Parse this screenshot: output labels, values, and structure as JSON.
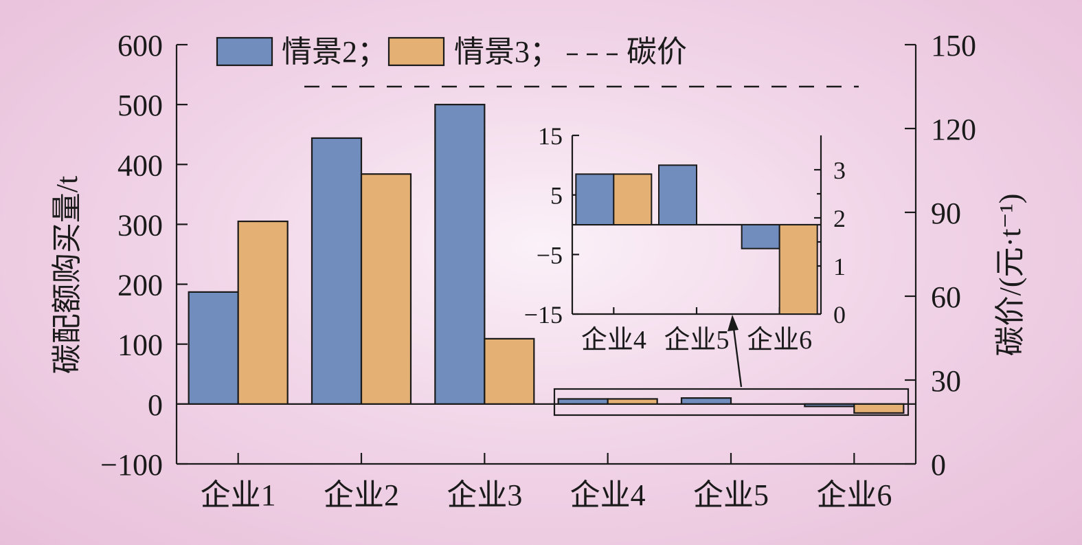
{
  "chart_data": {
    "type": "bar",
    "categories": [
      "企业1",
      "企业2",
      "企业3",
      "企业4",
      "企业5",
      "企业6"
    ],
    "series": [
      {
        "name": "情景2",
        "color": "#718dbd",
        "values": [
          187,
          444,
          500,
          8.5,
          10,
          -4
        ]
      },
      {
        "name": "情景3",
        "color": "#e5b073",
        "values": [
          305,
          384,
          109,
          8.5,
          0,
          -15
        ]
      }
    ],
    "carbon_price": {
      "label": "碳价",
      "value": 135,
      "style": "dashed"
    },
    "ylabel": "碳配额购买量/t",
    "y2label": "碳价/(元·t⁻¹)",
    "ylim": [
      -100,
      600
    ],
    "yticks": [
      "600",
      "500",
      "400",
      "300",
      "200",
      "100",
      "0",
      "−100"
    ],
    "y2lim": [
      0,
      150
    ],
    "y2ticks": [
      "150",
      "120",
      "90",
      "60",
      "30",
      "0"
    ],
    "legend": {
      "position": "top",
      "items": [
        "情景2；",
        "情景3；",
        "碳价"
      ]
    },
    "inset": {
      "categories": [
        "企业4",
        "企业5",
        "企业6"
      ],
      "ylim": [
        -15,
        15
      ],
      "yticks": [
        "15",
        "5",
        "−5",
        "−15"
      ],
      "y2ticks": [
        "3",
        "2",
        "1",
        "0"
      ],
      "series_values": [
        [
          8.5,
          10,
          -4
        ],
        [
          8.5,
          0,
          -15
        ]
      ]
    },
    "grid": false
  }
}
